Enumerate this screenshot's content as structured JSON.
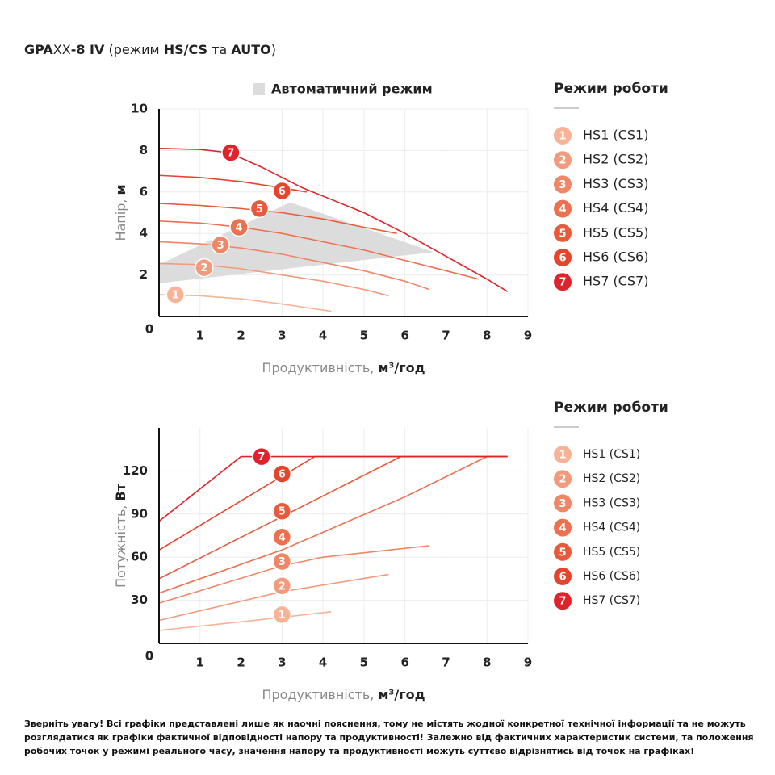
{
  "title_parts": [
    {
      "text": "GPA",
      "bold": true
    },
    {
      "text": "XX",
      "bold": false
    },
    {
      "text": "-8 IV",
      "bold": true
    },
    {
      "text": " (режим ",
      "bold": false
    },
    {
      "text": "HS/CS",
      "bold": true
    },
    {
      "text": " та ",
      "bold": false
    },
    {
      "text": "AUTO",
      "bold": true
    },
    {
      "text": ")",
      "bold": false
    }
  ],
  "note": "Зверніть увагу! Всі графіки представлені лише як наочні пояснення, тому не містять жодної конкретної технічної інформації та не можуть розглядатися як графіки фактичної відповідності напору та продуктивності! Залежно від фактичних характеристик системи, та положення робочих точок у режимі реального часу, значення напору та продуктивності можуть суттєво відрізнятись від точок на графіках!",
  "chart_data": [
    {
      "type": "line",
      "legend_title": "Режим роботи",
      "corner_label": "0",
      "ylabel": "Напір,",
      "ylabel_unit": "м",
      "xlabel": "Продуктивність,",
      "xlabel_unit": "м³/год",
      "xlim": [
        0,
        9
      ],
      "ylim": [
        0,
        10
      ],
      "xticks": [
        1,
        2,
        3,
        4,
        5,
        6,
        7,
        8,
        9
      ],
      "yticks": [
        2,
        4,
        6,
        8,
        10
      ],
      "grid": true,
      "auto_area": {
        "name": "Автоматичний режим",
        "color": "#dcdcdc",
        "x": [
          0,
          3.2,
          6.7,
          0
        ],
        "y": [
          2.5,
          5.5,
          3.1,
          1.6
        ]
      },
      "series": [
        {
          "name": "HS1 (CS1)",
          "marker_label": "1",
          "color": "#f6b396",
          "x": [
            0,
            1,
            2,
            3,
            4.2
          ],
          "values": [
            1.05,
            1.0,
            0.85,
            0.6,
            0.25
          ],
          "marker_x": 0.4,
          "marker_y": 1.05
        },
        {
          "name": "HS2 (CS2)",
          "marker_label": "2",
          "color": "#f29a7c",
          "x": [
            0,
            1,
            2,
            3,
            4,
            5,
            5.6
          ],
          "values": [
            2.55,
            2.5,
            2.3,
            2.0,
            1.7,
            1.3,
            1.0
          ],
          "marker_x": 1.1,
          "marker_y": 2.35
        },
        {
          "name": "HS3 (CS3)",
          "marker_label": "3",
          "color": "#ef8666",
          "x": [
            0,
            1,
            2,
            3,
            4,
            5,
            6,
            6.6
          ],
          "values": [
            3.6,
            3.5,
            3.3,
            3.0,
            2.6,
            2.2,
            1.7,
            1.3
          ],
          "marker_x": 1.5,
          "marker_y": 3.45
        },
        {
          "name": "HS4 (CS4)",
          "marker_label": "4",
          "color": "#ec7150",
          "x": [
            0,
            1,
            2,
            3,
            4,
            5,
            6,
            7,
            7.8
          ],
          "values": [
            4.6,
            4.5,
            4.3,
            4.0,
            3.6,
            3.2,
            2.7,
            2.2,
            1.8
          ],
          "marker_x": 1.95,
          "marker_y": 4.3
        },
        {
          "name": "HS5 (CS5)",
          "marker_label": "5",
          "color": "#e95a3c",
          "x": [
            0,
            1,
            2,
            3,
            4,
            5,
            5.8
          ],
          "values": [
            5.45,
            5.35,
            5.2,
            5.0,
            4.7,
            4.3,
            4.0
          ],
          "marker_x": 2.45,
          "marker_y": 5.2
        },
        {
          "name": "HS6 (CS6)",
          "marker_label": "6",
          "color": "#e5452d",
          "x": [
            0,
            1,
            2,
            3,
            3.6
          ],
          "values": [
            6.8,
            6.7,
            6.5,
            6.2,
            6.0
          ],
          "marker_x": 3,
          "marker_y": 6.05
        },
        {
          "name": "HS7 (CS7)",
          "marker_label": "7",
          "color": "#e0232a",
          "x": [
            0,
            1,
            1.7,
            2.5,
            3.5,
            4,
            5,
            6,
            7,
            8,
            8.5
          ],
          "values": [
            8.1,
            8.05,
            7.9,
            7.2,
            6.2,
            5.8,
            5.0,
            4.0,
            2.9,
            1.8,
            1.2
          ],
          "marker_x": 1.75,
          "marker_y": 7.9
        }
      ]
    },
    {
      "type": "line",
      "legend_title": "Режим роботи",
      "corner_label": "0",
      "ylabel": "Потужність,",
      "ylabel_unit": "Вт",
      "xlabel": "Продуктивність,",
      "xlabel_unit": "м³/год",
      "xlim": [
        0,
        9
      ],
      "ylim": [
        0,
        150
      ],
      "xticks": [
        1,
        2,
        3,
        4,
        5,
        6,
        7,
        8,
        9
      ],
      "yticks": [
        30,
        60,
        90,
        120
      ],
      "grid": true,
      "series": [
        {
          "name": "HS1 (CS1)",
          "marker_label": "1",
          "color": "#f6b396",
          "x": [
            0,
            2,
            4.2
          ],
          "values": [
            9,
            15,
            22
          ],
          "marker_x": 3,
          "marker_y": 20
        },
        {
          "name": "HS2 (CS2)",
          "marker_label": "2",
          "color": "#f29a7c",
          "x": [
            0,
            3,
            5.6
          ],
          "values": [
            16,
            36,
            48
          ],
          "marker_x": 3,
          "marker_y": 40
        },
        {
          "name": "HS3 (CS3)",
          "marker_label": "3",
          "color": "#ef8666",
          "x": [
            0,
            3,
            4,
            6.6
          ],
          "values": [
            28,
            54,
            60,
            68
          ],
          "marker_x": 3,
          "marker_y": 57
        },
        {
          "name": "HS4 (CS4)",
          "marker_label": "4",
          "color": "#ec7150",
          "x": [
            0,
            3,
            6,
            8,
            8.5
          ],
          "values": [
            35,
            65,
            102,
            130,
            130
          ],
          "marker_x": 3,
          "marker_y": 74
        },
        {
          "name": "HS5 (CS5)",
          "marker_label": "5",
          "color": "#e95a3c",
          "x": [
            0,
            5.9,
            8.5
          ],
          "values": [
            45,
            130,
            130
          ],
          "marker_x": 3,
          "marker_y": 92
        },
        {
          "name": "HS6 (CS6)",
          "marker_label": "6",
          "color": "#e5452d",
          "x": [
            0,
            3.8,
            8.5
          ],
          "values": [
            65,
            130,
            130
          ],
          "marker_x": 3,
          "marker_y": 118
        },
        {
          "name": "HS7 (CS7)",
          "marker_label": "7",
          "color": "#e0232a",
          "x": [
            0,
            2,
            8.5
          ],
          "values": [
            85,
            130,
            130
          ],
          "marker_x": 2.5,
          "marker_y": 130
        }
      ]
    }
  ]
}
